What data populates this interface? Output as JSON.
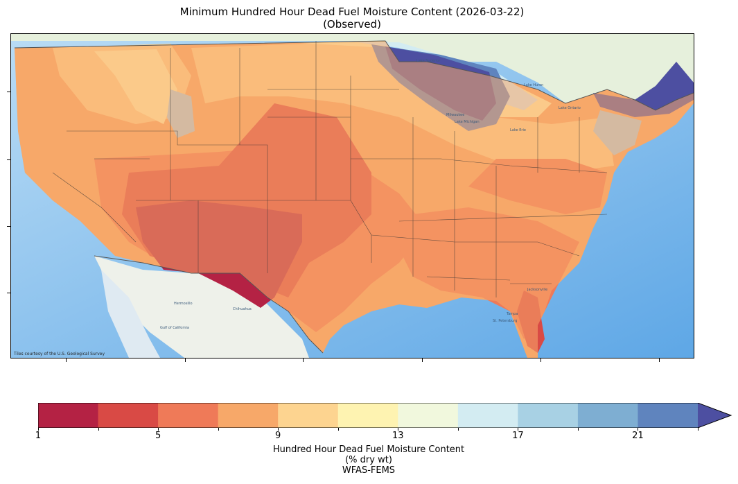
{
  "title": {
    "line1": "Minimum Hundred Hour Dead Fuel Moisture Content (2026-03-22)",
    "line2": "(Observed)"
  },
  "map": {
    "attribution": "Tiles courtesy of the U.S. Geological Survey",
    "place_labels": [
      "Lake Superior",
      "Lake Michigan",
      "Lake Huron",
      "Lake Erie",
      "Lake Ontario",
      "Milwaukee",
      "Chihuahua",
      "Hermosillo",
      "Gulf of California",
      "Jacksonville",
      "Tampa",
      "St. Petersburg"
    ]
  },
  "colorbar": {
    "tick_labels": [
      "1",
      "5",
      "9",
      "13",
      "17",
      "21"
    ],
    "range": [
      1,
      23
    ],
    "extend": "max",
    "colors": [
      "#b42244",
      "#d94a45",
      "#ef7a58",
      "#f7a869",
      "#fdd490",
      "#fef3b1",
      "#f1f8dd",
      "#d3ecf2",
      "#a8d1e4",
      "#7eaed2",
      "#5f84be",
      "#4d4fa1"
    ],
    "label_line1": "Hundred Hour Dead Fuel Moisture Content",
    "label_line2": "(% dry wt)",
    "label_line3": "WFAS-FEMS"
  }
}
